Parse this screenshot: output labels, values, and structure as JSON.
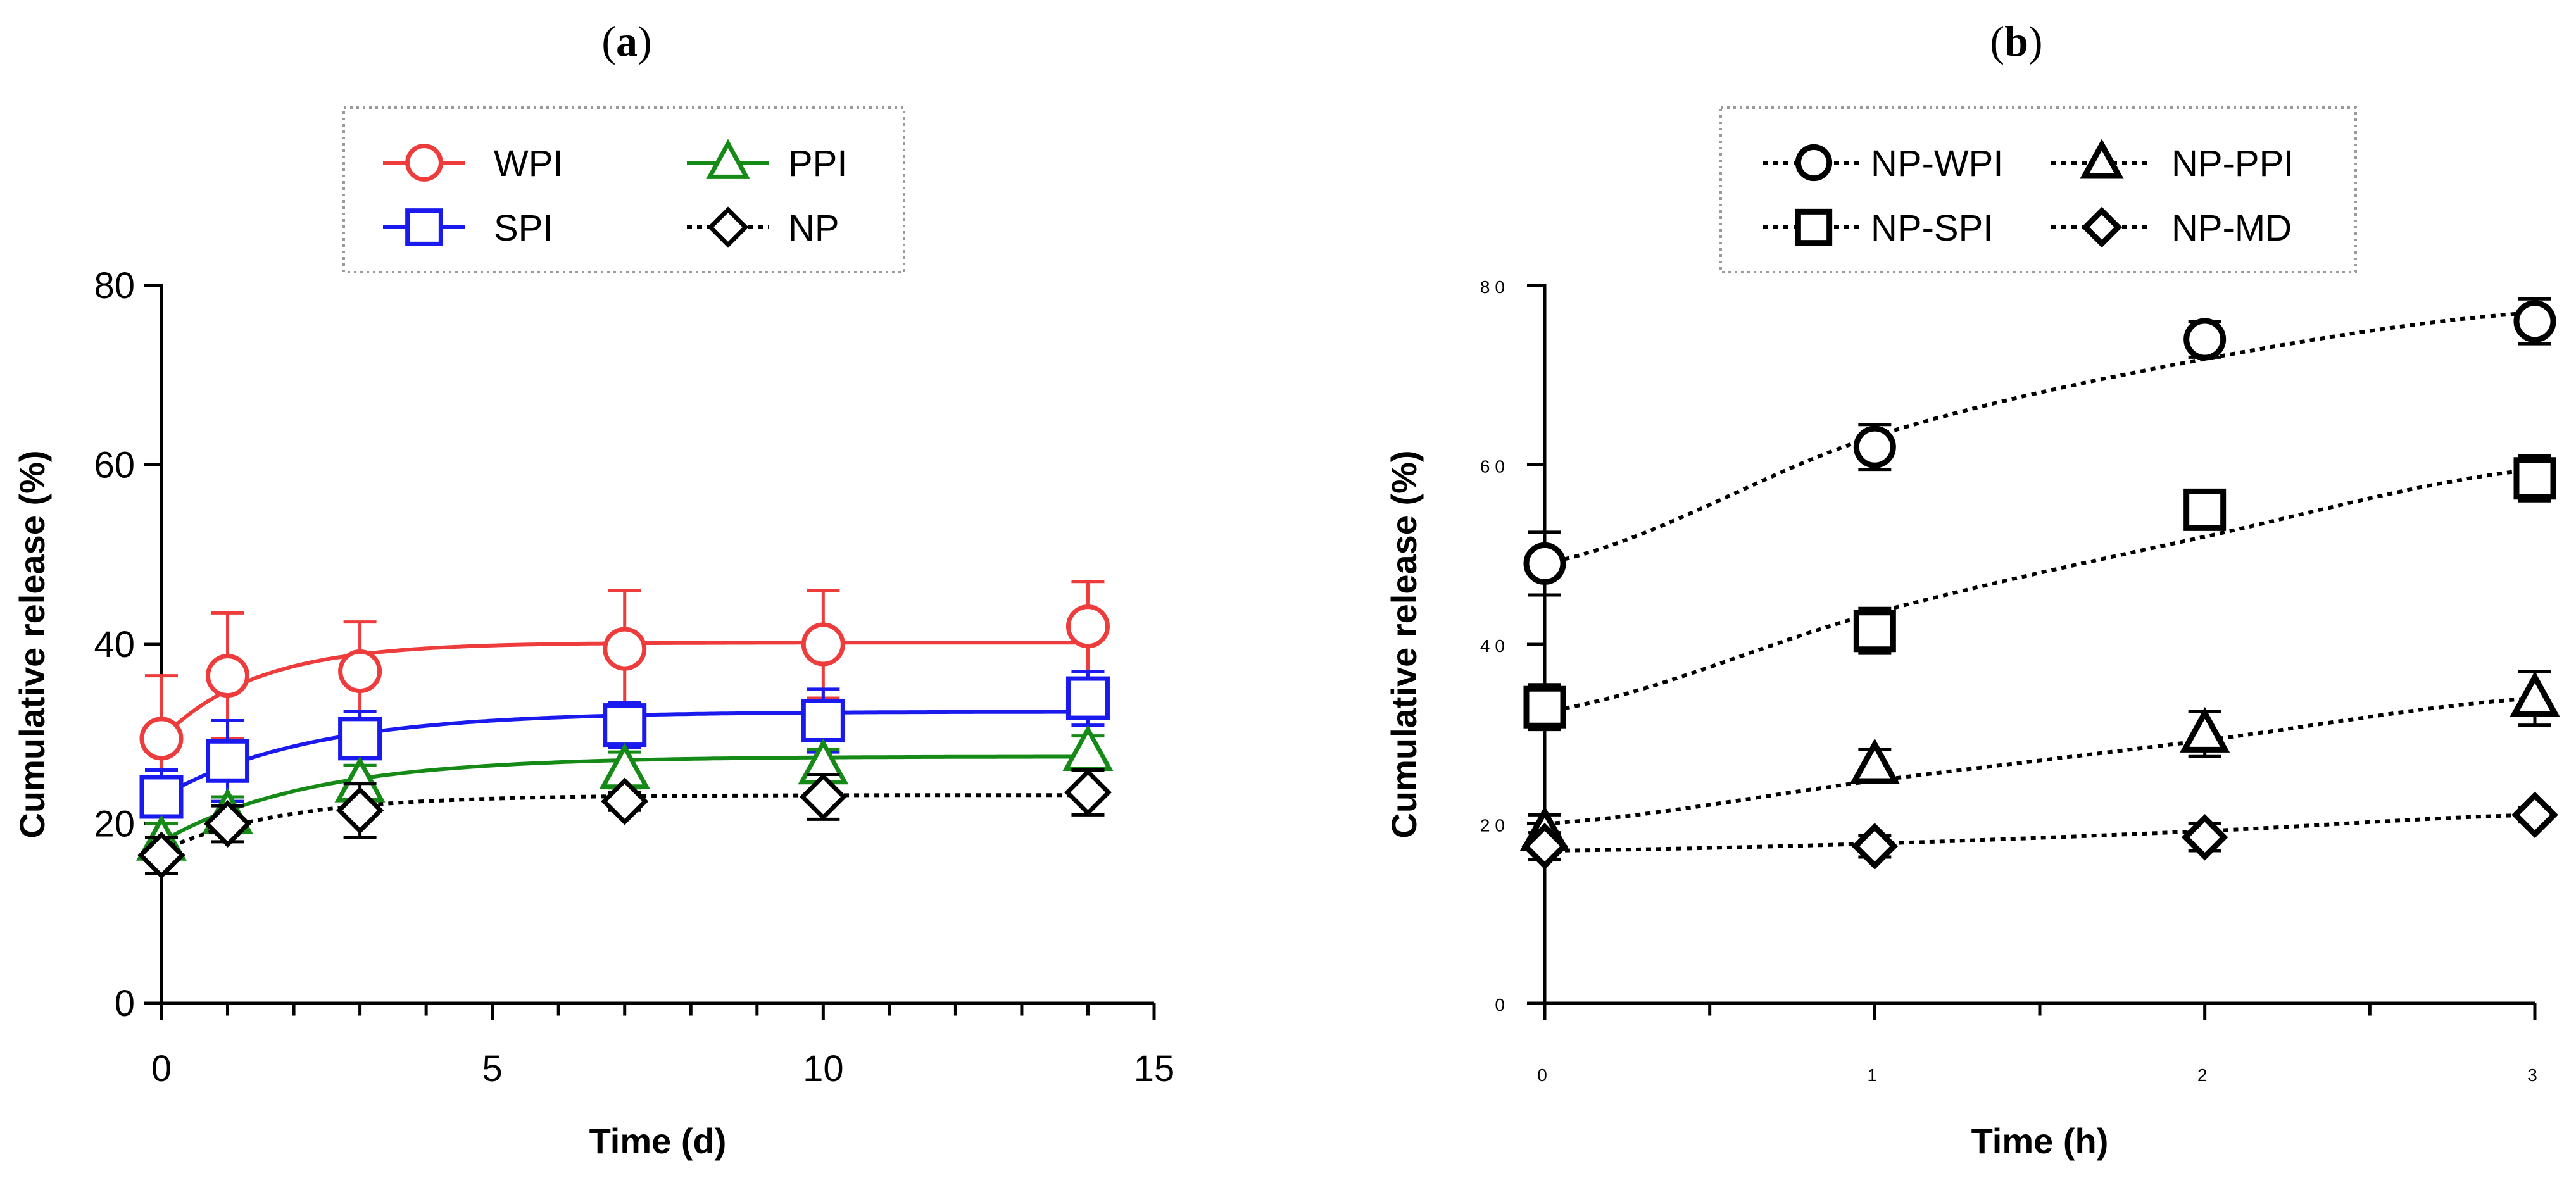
{
  "chart_data": [
    {
      "id": "a",
      "type": "scatter",
      "title": "a",
      "xlabel": "Time (d)",
      "ylabel": "Cumulative release (%)",
      "xlim": [
        0,
        15
      ],
      "ylim": [
        0,
        80
      ],
      "xticks": [
        "0",
        "5",
        "10",
        "15"
      ],
      "yticks": [
        "0",
        "20",
        "40",
        "60",
        "80"
      ],
      "legend_position": "top",
      "series": [
        {
          "name": "WPI",
          "color": "#ee3b3b",
          "marker": "circle",
          "line": "solid",
          "x": [
            0,
            1,
            3,
            7,
            10,
            14
          ],
          "y": [
            29.5,
            36.5,
            37.0,
            39.5,
            40.0,
            42.0
          ],
          "err": [
            7.0,
            7.0,
            5.5,
            6.5,
            6.0,
            5.0
          ],
          "fit": {
            "y0": 29.5,
            "plateau": 40.2,
            "k": 0.7
          }
        },
        {
          "name": "SPI",
          "color": "#1a1aee",
          "marker": "square",
          "line": "solid",
          "x": [
            0,
            1,
            3,
            7,
            10,
            14
          ],
          "y": [
            23.0,
            27.0,
            29.5,
            31.0,
            31.5,
            34.0
          ],
          "err": [
            3.0,
            4.5,
            3.0,
            2.5,
            3.5,
            3.0
          ],
          "fit": {
            "y0": 23.0,
            "plateau": 32.5,
            "k": 0.45
          }
        },
        {
          "name": "PPI",
          "color": "#168a16",
          "marker": "triangle",
          "line": "solid",
          "x": [
            0,
            1,
            3,
            7,
            10,
            14
          ],
          "y": [
            18.0,
            21.0,
            24.5,
            26.0,
            26.5,
            28.0
          ],
          "err": [
            2.0,
            2.0,
            2.0,
            2.0,
            1.8,
            1.8
          ],
          "fit": {
            "y0": 18.0,
            "plateau": 27.5,
            "k": 0.45
          }
        },
        {
          "name": "NP",
          "color": "#000000",
          "marker": "diamond",
          "line": "dotted",
          "x": [
            0,
            1,
            3,
            7,
            10,
            14
          ],
          "y": [
            16.5,
            20.0,
            21.5,
            22.5,
            23.0,
            23.5
          ],
          "err": [
            2.0,
            2.0,
            3.0,
            1.0,
            2.5,
            2.5
          ],
          "fit": {
            "y0": 17.0,
            "plateau": 23.2,
            "k": 0.55
          }
        }
      ]
    },
    {
      "id": "b",
      "type": "scatter",
      "title": "b",
      "xlabel": "Time (h)",
      "ylabel": "Cumulative release (%)",
      "xlim": [
        0,
        3
      ],
      "ylim": [
        0,
        80
      ],
      "xticks": [
        "0",
        "1",
        "2",
        "3"
      ],
      "yticks": [
        "0",
        "20",
        "40",
        "60",
        "80"
      ],
      "legend_position": "top",
      "series": [
        {
          "name": "NP-WPI",
          "color": "#000000",
          "marker": "circle",
          "line": "dotted",
          "x": [
            0,
            1,
            2,
            3
          ],
          "y": [
            49.0,
            62.0,
            74.0,
            76.0
          ],
          "err": [
            3.5,
            2.5,
            2.0,
            2.5
          ],
          "fit": [
            49.0,
            63.2,
            71.8,
            77.0
          ]
        },
        {
          "name": "NP-SPI",
          "color": "#000000",
          "marker": "square",
          "line": "dotted",
          "x": [
            0,
            1,
            2,
            3
          ],
          "y": [
            33.0,
            41.5,
            55.0,
            58.5
          ],
          "err": [
            2.5,
            2.5,
            1.5,
            2.5
          ],
          "fit": [
            32.5,
            43.5,
            52.0,
            59.5
          ]
        },
        {
          "name": "NP-PPI",
          "color": "#000000",
          "marker": "triangle",
          "line": "dotted",
          "x": [
            0,
            1,
            2,
            3
          ],
          "y": [
            19.0,
            26.5,
            30.0,
            34.0
          ],
          "err": [
            2.0,
            1.8,
            2.5,
            3.0
          ],
          "fit": [
            20.0,
            24.8,
            29.3,
            34.0
          ]
        },
        {
          "name": "NP-MD",
          "color": "#000000",
          "marker": "diamond",
          "line": "dotted",
          "x": [
            0,
            1,
            2,
            3
          ],
          "y": [
            17.5,
            17.5,
            18.5,
            21.0
          ],
          "err": [
            1.5,
            1.2,
            1.5,
            0.8
          ],
          "fit": [
            17.0,
            17.8,
            19.2,
            21.0
          ]
        }
      ]
    }
  ]
}
